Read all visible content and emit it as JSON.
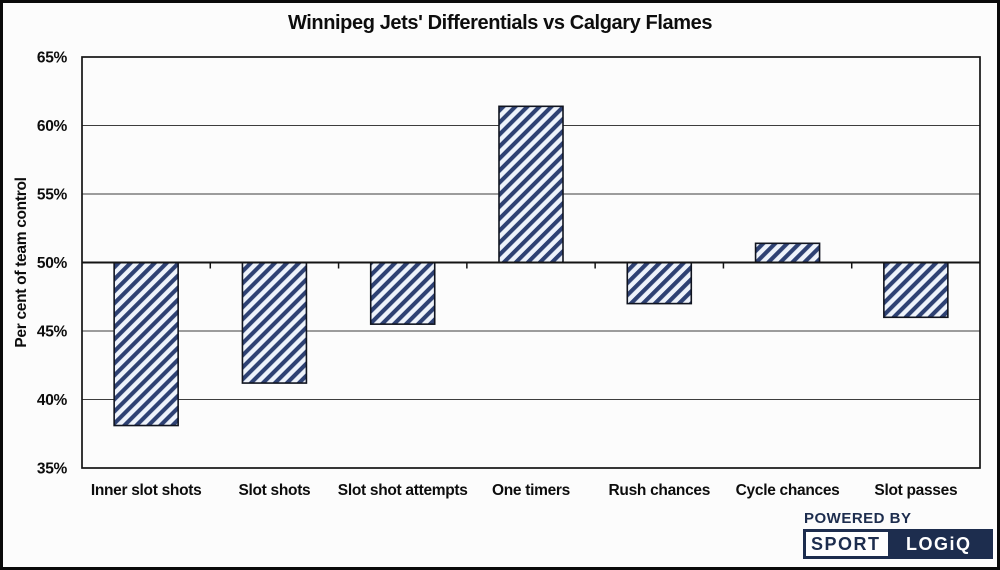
{
  "title": "Winnipeg Jets' Differentials vs Calgary Flames",
  "chart_data": {
    "type": "bar",
    "title": "Winnipeg Jets' Differentials vs Calgary Flames",
    "xlabel": "",
    "ylabel": "Per cent of team control",
    "categories": [
      "Inner slot shots",
      "Slot shots",
      "Slot shot attempts",
      "One timers",
      "Rush chances",
      "Cycle chances",
      "Slot passes"
    ],
    "values": [
      38.1,
      41.2,
      45.5,
      61.4,
      47.0,
      51.4,
      46.0
    ],
    "baseline": 50,
    "ylim": [
      35,
      65
    ],
    "ytick_step": 5,
    "ytick_suffix": "%",
    "grid": true,
    "legend": "none",
    "bar_fill_color": "#eef3fb",
    "bar_hatch_color": "#2e4173",
    "bar_border_color": "#10141f",
    "axis_color": "#141414",
    "gridline_color": "#3d3d3d",
    "label_color": "#0d0d0d"
  },
  "logo": {
    "powered_by": "POWERED BY",
    "brand_left": "SPORT",
    "brand_right": "LOGiQ",
    "navy": "#1d2d4e"
  }
}
